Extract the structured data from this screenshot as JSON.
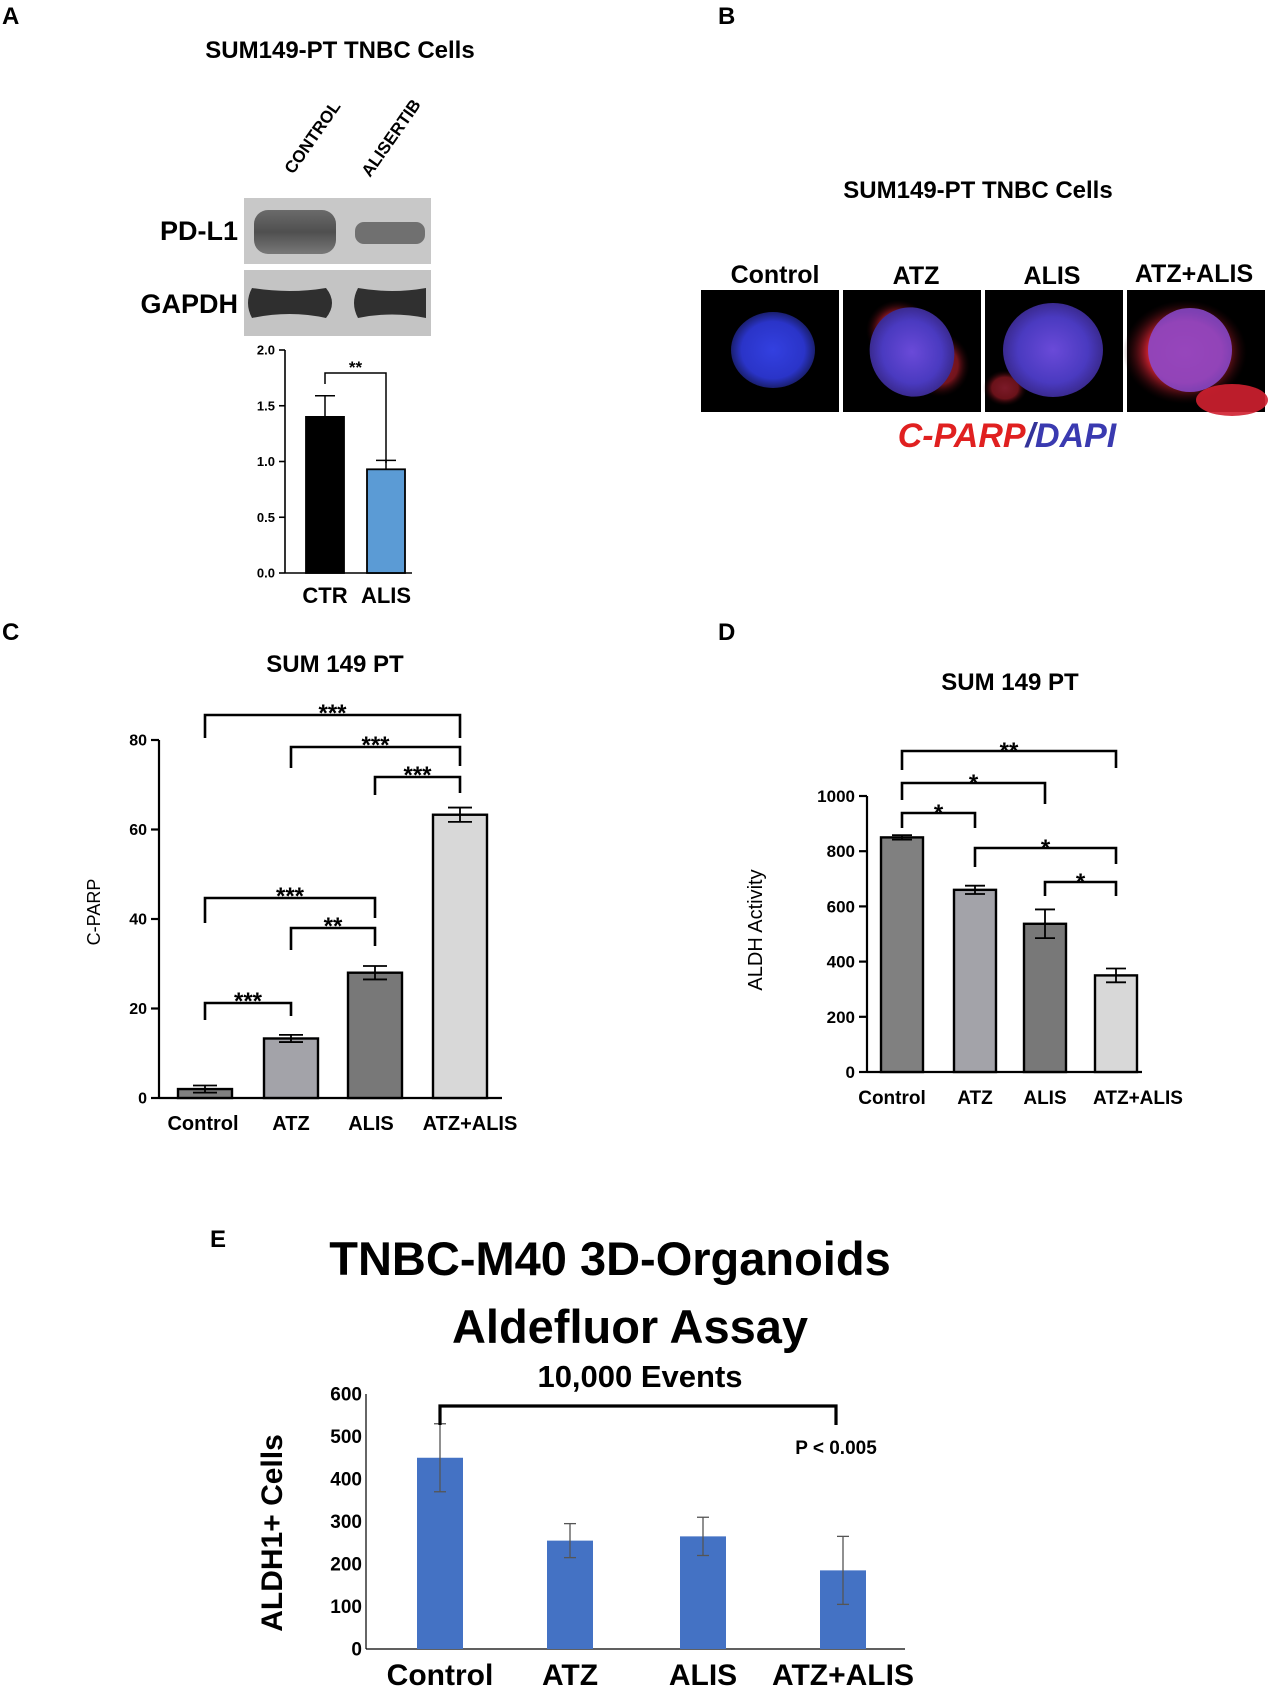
{
  "panel_letters": {
    "A": "A",
    "B": "B",
    "C": "C",
    "D": "D",
    "E": "E"
  },
  "panel_a": {
    "title": "SUM149-PT TNBC Cells",
    "lane_labels": [
      "CONTROL",
      "ALISERTIB"
    ],
    "blot_labels": [
      "PD-L1",
      "GAPDH"
    ],
    "chart": {
      "type": "bar",
      "categories": [
        "CTR",
        "ALIS"
      ],
      "values": [
        1.4,
        0.93
      ],
      "errors": [
        0.19,
        0.08
      ],
      "colors": [
        "#000000",
        "#5b9bd5"
      ],
      "ylim": [
        0,
        2.0
      ],
      "yticks": [
        "0.0",
        "0.5",
        "1.0",
        "1.5",
        "2.0"
      ],
      "sig": [
        {
          "from": 0,
          "to": 1,
          "label": "**"
        }
      ]
    }
  },
  "panel_b": {
    "title": "SUM149-PT TNBC Cells",
    "columns": [
      "Control",
      "ATZ",
      "ALIS",
      "ATZ+ALIS"
    ],
    "stain_red": "C-PARP",
    "stain_sep": "/",
    "stain_blue": "DAPI"
  },
  "panel_c": {
    "type": "bar",
    "title": "SUM 149 PT",
    "ylabel": "C-PARP",
    "categories": [
      "Control",
      "ATZ",
      "ALIS",
      "ATZ+ALIS"
    ],
    "values": [
      2,
      13.3,
      28,
      63.3
    ],
    "errors": [
      0.8,
      0.8,
      1.5,
      1.6
    ],
    "colors": [
      "#808080",
      "#a3a3a9",
      "#787878",
      "#d8d8d8"
    ],
    "ylim": [
      0,
      80
    ],
    "yticks": [
      "0",
      "20",
      "40",
      "60",
      "80"
    ],
    "sig": [
      {
        "from": 0,
        "to": 3,
        "label": "***"
      },
      {
        "from": 1,
        "to": 3,
        "label": "***"
      },
      {
        "from": 2,
        "to": 3,
        "label": "***"
      },
      {
        "from": 0,
        "to": 2,
        "label": "***"
      },
      {
        "from": 1,
        "to": 2,
        "label": "**"
      },
      {
        "from": 0,
        "to": 1,
        "label": "***"
      }
    ]
  },
  "panel_d": {
    "type": "bar",
    "title": "SUM 149 PT",
    "ylabel": "ALDH Activity",
    "categories": [
      "Control",
      "ATZ",
      "ALIS",
      "ATZ+ALIS"
    ],
    "values": [
      850,
      660,
      537,
      350
    ],
    "errors": [
      8,
      15,
      52,
      25
    ],
    "colors": [
      "#808080",
      "#a3a3a9",
      "#787878",
      "#d8d8d8"
    ],
    "ylim": [
      0,
      1000
    ],
    "yticks": [
      "0",
      "200",
      "400",
      "600",
      "800",
      "1000"
    ],
    "sig": [
      {
        "from": 0,
        "to": 3,
        "label": "**"
      },
      {
        "from": 0,
        "to": 2,
        "label": "*"
      },
      {
        "from": 0,
        "to": 1,
        "label": "*"
      },
      {
        "from": 1,
        "to": 3,
        "label": "*"
      },
      {
        "from": 2,
        "to": 3,
        "label": "*"
      }
    ]
  },
  "panel_e": {
    "type": "bar",
    "title_line1": "TNBC-M40 3D-Organoids",
    "title_line2": "Aldefluor Assay",
    "subtitle": "10,000 Events",
    "ylabel": "ALDH1+ Cells",
    "categories": [
      "Control",
      "ATZ",
      "ALIS",
      "ATZ+ALIS"
    ],
    "values": [
      450,
      255,
      265,
      185
    ],
    "errors": [
      80,
      40,
      45,
      80
    ],
    "color": "#4472c4",
    "ylim": [
      0,
      600
    ],
    "yticks": [
      "0",
      "100",
      "200",
      "300",
      "400",
      "500",
      "600"
    ],
    "sig_label": "P < 0.005"
  }
}
